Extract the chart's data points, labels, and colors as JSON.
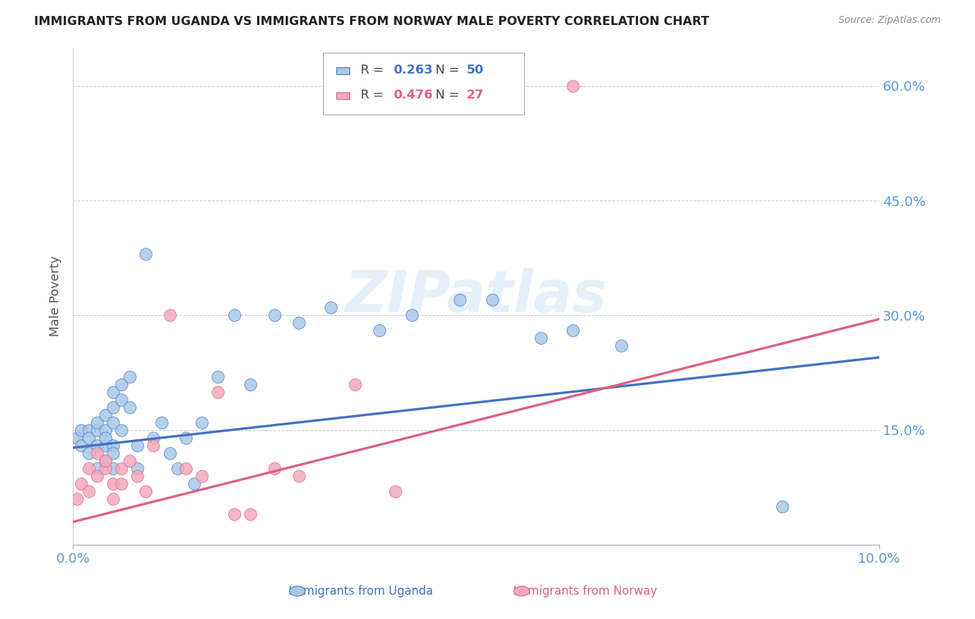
{
  "title": "IMMIGRANTS FROM UGANDA VS IMMIGRANTS FROM NORWAY MALE POVERTY CORRELATION CHART",
  "source": "Source: ZipAtlas.com",
  "ylabel": "Male Poverty",
  "xlim": [
    0.0,
    0.1
  ],
  "ylim": [
    0.0,
    0.65
  ],
  "yticks": [
    0.15,
    0.3,
    0.45,
    0.6
  ],
  "ytick_labels": [
    "15.0%",
    "30.0%",
    "45.0%",
    "60.0%"
  ],
  "xticks": [
    0.0,
    0.1
  ],
  "xtick_labels": [
    "0.0%",
    "10.0%"
  ],
  "color_uganda": "#a8c8e8",
  "color_norway": "#f4a8bc",
  "color_uganda_line": "#4472c4",
  "color_norway_line": "#e06080",
  "color_right_axis": "#5b9bd5",
  "watermark_text": "ZIPatlas",
  "legend_r1": "R = 0.263",
  "legend_n1": "N = 50",
  "legend_r2": "R = 0.476",
  "legend_n2": "N = 27",
  "uganda_x": [
    0.0005,
    0.001,
    0.001,
    0.002,
    0.002,
    0.002,
    0.003,
    0.003,
    0.003,
    0.003,
    0.004,
    0.004,
    0.004,
    0.004,
    0.004,
    0.005,
    0.005,
    0.005,
    0.005,
    0.005,
    0.005,
    0.006,
    0.006,
    0.006,
    0.007,
    0.007,
    0.008,
    0.008,
    0.009,
    0.01,
    0.011,
    0.012,
    0.013,
    0.014,
    0.015,
    0.016,
    0.018,
    0.02,
    0.022,
    0.025,
    0.028,
    0.032,
    0.038,
    0.042,
    0.048,
    0.052,
    0.058,
    0.062,
    0.068,
    0.088
  ],
  "uganda_y": [
    0.14,
    0.13,
    0.15,
    0.15,
    0.14,
    0.12,
    0.15,
    0.16,
    0.13,
    0.1,
    0.17,
    0.15,
    0.13,
    0.11,
    0.14,
    0.18,
    0.2,
    0.16,
    0.13,
    0.12,
    0.1,
    0.21,
    0.19,
    0.15,
    0.22,
    0.18,
    0.13,
    0.1,
    0.38,
    0.14,
    0.16,
    0.12,
    0.1,
    0.14,
    0.08,
    0.16,
    0.22,
    0.3,
    0.21,
    0.3,
    0.29,
    0.31,
    0.28,
    0.3,
    0.32,
    0.32,
    0.27,
    0.28,
    0.26,
    0.05
  ],
  "norway_x": [
    0.0005,
    0.001,
    0.002,
    0.002,
    0.003,
    0.003,
    0.004,
    0.004,
    0.005,
    0.005,
    0.006,
    0.006,
    0.007,
    0.008,
    0.009,
    0.01,
    0.012,
    0.014,
    0.016,
    0.018,
    0.02,
    0.022,
    0.025,
    0.028,
    0.035,
    0.04,
    0.062
  ],
  "norway_y": [
    0.06,
    0.08,
    0.1,
    0.07,
    0.12,
    0.09,
    0.1,
    0.11,
    0.08,
    0.06,
    0.08,
    0.1,
    0.11,
    0.09,
    0.07,
    0.13,
    0.3,
    0.1,
    0.09,
    0.2,
    0.04,
    0.04,
    0.1,
    0.09,
    0.21,
    0.07,
    0.6
  ],
  "uganda_line_x": [
    0.0,
    0.1
  ],
  "uganda_line_y": [
    0.127,
    0.245
  ],
  "norway_line_x": [
    0.0,
    0.1
  ],
  "norway_line_y": [
    0.03,
    0.295
  ]
}
